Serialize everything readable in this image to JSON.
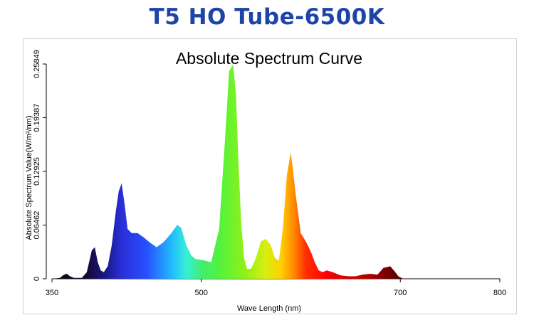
{
  "page_title": "T5 HO Tube-6500K",
  "chart_data": {
    "type": "area",
    "title": "Absolute Spectrum Curve",
    "xlabel": "Wave Length (nm)",
    "ylabel": "Absolute Spectrum Value(W/m²/nm)",
    "xlim": [
      350,
      800
    ],
    "ylim": [
      0,
      0.25849
    ],
    "xticks": [
      350,
      500,
      700,
      800
    ],
    "yticks": [
      "0",
      "0.06462",
      "0.12925",
      "0.19387",
      "0.25849"
    ],
    "grid": false,
    "series": [
      {
        "x": [
          350,
          358,
          362,
          365,
          368,
          372,
          380,
          385,
          390,
          393,
          396,
          399,
          402,
          406,
          410,
          414,
          417,
          420,
          423,
          426,
          430,
          436,
          442,
          448,
          455,
          462,
          470,
          476,
          480,
          485,
          490,
          494,
          498,
          503,
          510,
          518,
          524,
          528,
          532,
          535,
          537,
          540,
          543,
          546,
          550,
          555,
          560,
          565,
          570,
          574,
          578,
          582,
          586,
          590,
          595,
          600,
          605,
          608,
          611,
          614,
          618,
          622,
          626,
          632,
          640,
          648,
          655,
          662,
          670,
          677,
          683,
          690,
          695,
          698,
          701,
          704,
          707,
          712,
          720,
          800
        ],
        "y": [
          0,
          0.001,
          0.005,
          0.006,
          0.003,
          0.001,
          0.001,
          0.008,
          0.034,
          0.038,
          0.02,
          0.01,
          0.008,
          0.015,
          0.04,
          0.08,
          0.105,
          0.115,
          0.09,
          0.06,
          0.055,
          0.055,
          0.05,
          0.044,
          0.038,
          0.044,
          0.055,
          0.065,
          0.061,
          0.04,
          0.028,
          0.024,
          0.023,
          0.022,
          0.02,
          0.06,
          0.17,
          0.25,
          0.258,
          0.22,
          0.15,
          0.07,
          0.025,
          0.012,
          0.012,
          0.025,
          0.045,
          0.048,
          0.04,
          0.025,
          0.022,
          0.06,
          0.125,
          0.152,
          0.1,
          0.055,
          0.045,
          0.038,
          0.03,
          0.02,
          0.01,
          0.008,
          0.01,
          0.008,
          0.004,
          0.003,
          0.003,
          0.005,
          0.006,
          0.005,
          0.013,
          0.015,
          0.008,
          0.003,
          0.001,
          0.0,
          0.0,
          0.0,
          0.0,
          0.0
        ]
      }
    ]
  }
}
